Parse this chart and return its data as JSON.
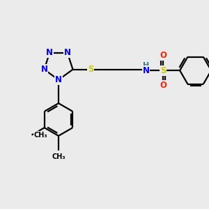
{
  "background_color": "#ebebeb",
  "bond_color": "#000000",
  "bond_width": 1.6,
  "atom_colors": {
    "N": "#0000ff",
    "S": "#cccc00",
    "O": "#ff2200",
    "H": "#3a8080",
    "C": "#000000"
  },
  "font_size": 8.5,
  "fig_width": 3.0,
  "fig_height": 3.0,
  "dpi": 100
}
